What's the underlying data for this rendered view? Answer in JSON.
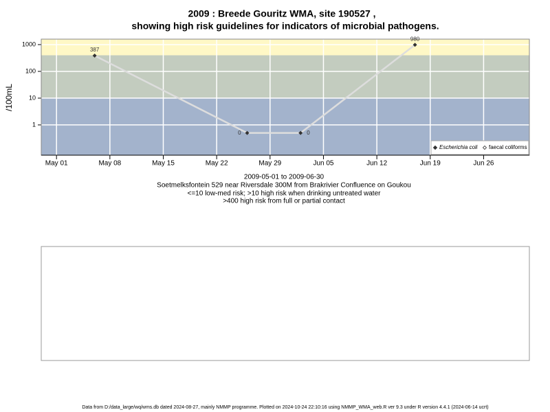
{
  "chart_data": {
    "type": "line",
    "title": "2009 : Breede Gouritz WMA, site 190527 ,",
    "title_line2": "showing high risk guidelines for indicators of microbial pathogens.",
    "subtitle": [
      "2009-05-01 to 2009-06-30",
      "Soetmelksfontein 529 near Riversdale 300M from Brakrivier Confluence on Goukou",
      "<=10 low-med risk; >10 high risk when drinking untreated water",
      ">400 high risk from full or partial contact"
    ],
    "ylabel": "/100mL",
    "log_y": true,
    "ylim": [
      0.074,
      1600
    ],
    "yticks": [
      1,
      10,
      100,
      1000
    ],
    "xlim": [
      "2009-04-29",
      "2009-07-02"
    ],
    "xticks": [
      {
        "value": "2009-05-01",
        "label": "May 01"
      },
      {
        "value": "2009-05-08",
        "label": "May 08"
      },
      {
        "value": "2009-05-15",
        "label": "May 15"
      },
      {
        "value": "2009-05-22",
        "label": "May 22"
      },
      {
        "value": "2009-05-29",
        "label": "May 29"
      },
      {
        "value": "2009-06-05",
        "label": "Jun 05"
      },
      {
        "value": "2009-06-12",
        "label": "Jun 12"
      },
      {
        "value": "2009-06-19",
        "label": "Jun 19"
      },
      {
        "value": "2009-06-26",
        "label": "Jun 26"
      }
    ],
    "grid": true,
    "bands": [
      {
        "max": 10,
        "color": "#a3b3cc"
      },
      {
        "min": 10,
        "max": 400,
        "color": "#c3ccbf"
      },
      {
        "min": 400,
        "color": "#fff8c6"
      }
    ],
    "x": [
      "2009-05-06",
      "2009-05-26",
      "2009-06-02",
      "2009-06-17"
    ],
    "series": [
      {
        "name": "Escherichia coli",
        "color": "#333333",
        "line_color": "#dddddd",
        "values": [
          387,
          0.5,
          0.5,
          980
        ],
        "value_labels": [
          "387",
          "0",
          "0",
          "980"
        ]
      },
      {
        "name": "faecal coliforms",
        "color": "#555555",
        "values": [
          null,
          null,
          null,
          null
        ]
      }
    ],
    "legend": "lower right",
    "footer": "Data from D:/data_large/wq/wms.db dated 2024-08-27, mainly NMMP programme. Plotted on 2024-10-24 22:10:16 using NMMP_WMA_web.R ver 9.3 under R version 4.4.1 (2024-06-14 ucrt)"
  }
}
